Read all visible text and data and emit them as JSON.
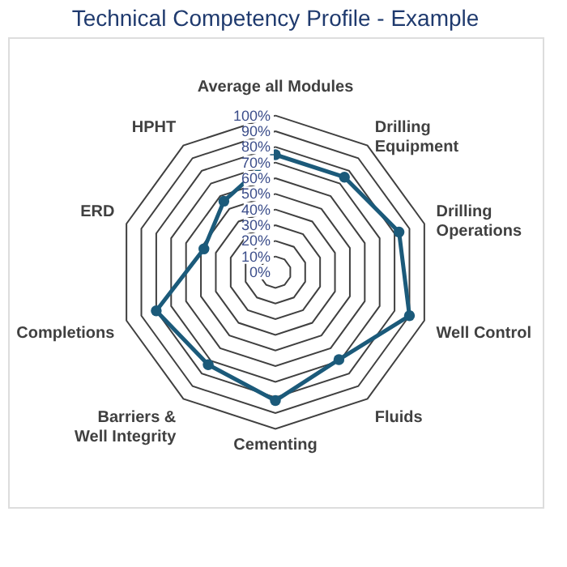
{
  "chart_data": {
    "type": "radar",
    "title": "Technical Competency Profile  - Example",
    "categories": [
      "Average all Modules",
      "Drilling Equipment",
      "Drilling Operations",
      "Well Control",
      "Fluids",
      "Cementing",
      "Barriers & Well Integrity",
      "Completions",
      "ERD",
      "HPHT"
    ],
    "series": [
      {
        "color": "#1b5a7a",
        "values": [
          75,
          75,
          83,
          90,
          69,
          82,
          73,
          80,
          48,
          56
        ]
      }
    ],
    "ylim": [
      0,
      100
    ],
    "yticks": [
      {
        "value": 0,
        "label": "0%"
      },
      {
        "value": 10,
        "label": "10%"
      },
      {
        "value": 20,
        "label": "20%"
      },
      {
        "value": 30,
        "label": "30%"
      },
      {
        "value": 40,
        "label": "40%"
      },
      {
        "value": 50,
        "label": "50%"
      },
      {
        "value": 60,
        "label": "60%"
      },
      {
        "value": 70,
        "label": "70%"
      },
      {
        "value": 80,
        "label": "80%"
      },
      {
        "value": 90,
        "label": "90%"
      },
      {
        "value": 100,
        "label": "100%"
      }
    ],
    "marker": "circle",
    "grid": true
  }
}
